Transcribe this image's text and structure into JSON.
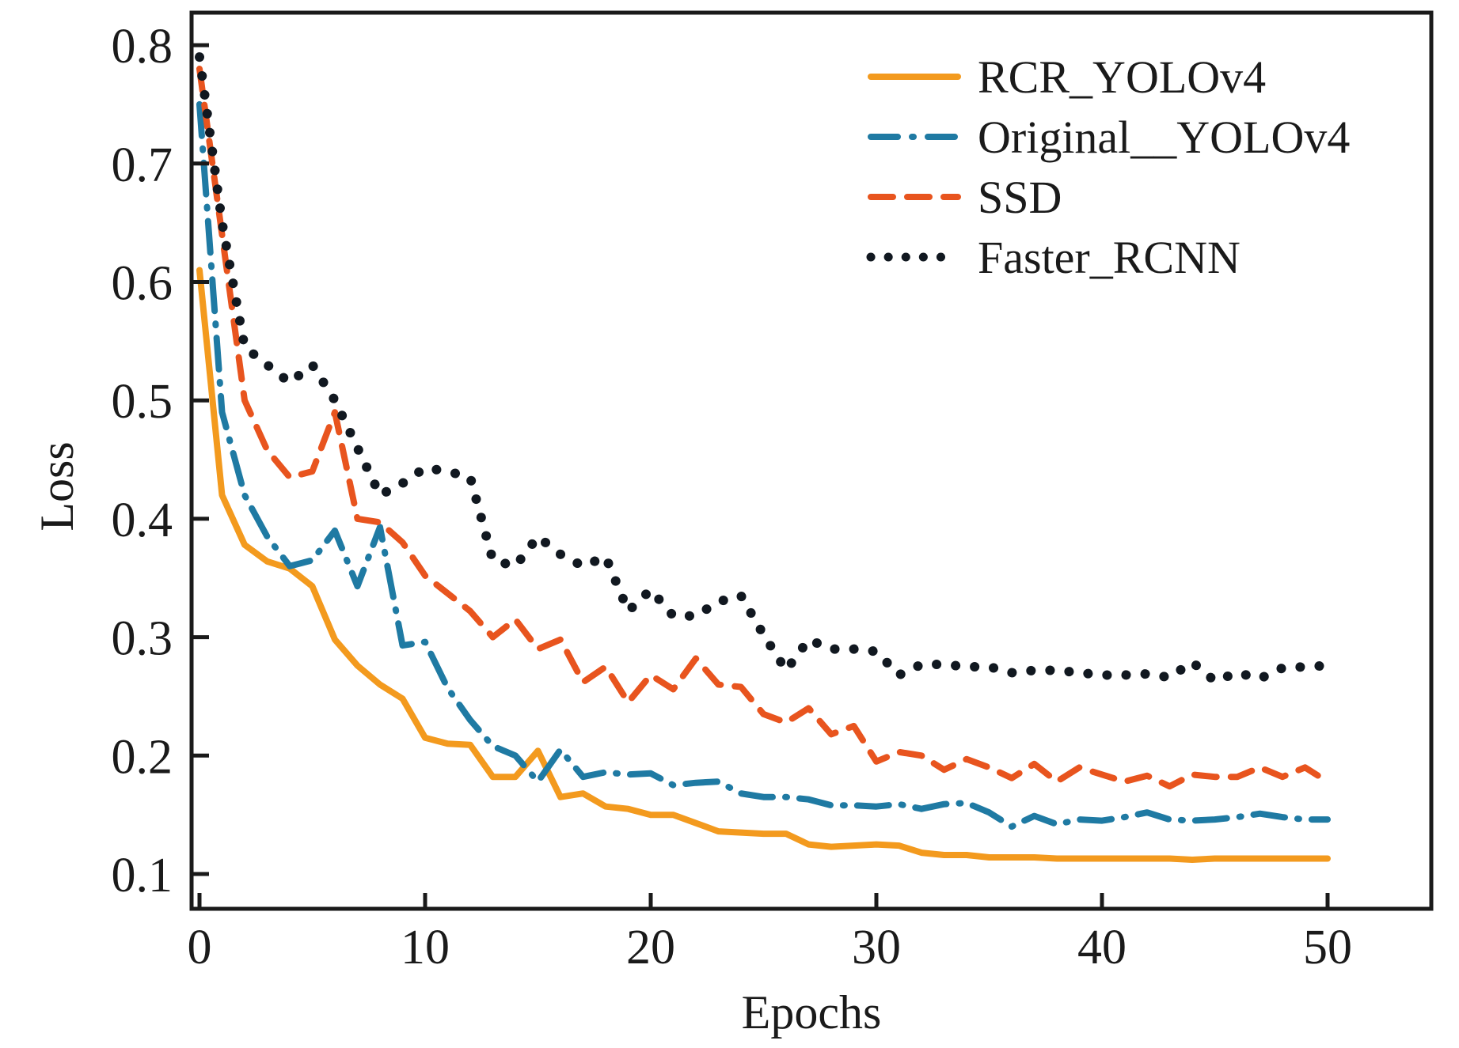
{
  "chart_data": {
    "type": "line",
    "title": "",
    "xlabel": "Epochs",
    "ylabel": "Loss",
    "xlim": [
      0,
      55
    ],
    "ylim": [
      0.07,
      0.83
    ],
    "xticks": [
      0,
      10,
      20,
      30,
      40,
      50
    ],
    "xtick_labels": [
      "0",
      "10",
      "20",
      "30",
      "40",
      "50"
    ],
    "yticks": [
      0.1,
      0.2,
      0.3,
      0.4,
      0.5,
      0.6,
      0.7,
      0.8
    ],
    "ytick_labels": [
      "0.1",
      "0.2",
      "0.3",
      "0.4",
      "0.5",
      "0.6",
      "0.7",
      "0.8"
    ],
    "grid": false,
    "legend_position": "top-right",
    "x": [
      0,
      1,
      2,
      3,
      4,
      5,
      6,
      7,
      8,
      9,
      10,
      11,
      12,
      13,
      14,
      15,
      16,
      17,
      18,
      19,
      20,
      21,
      22,
      23,
      24,
      25,
      26,
      27,
      28,
      29,
      30,
      31,
      32,
      33,
      34,
      35,
      36,
      37,
      38,
      39,
      40,
      41,
      42,
      43,
      44,
      45,
      46,
      47,
      48,
      49,
      50
    ],
    "series": [
      {
        "name": "RCR_YOLOv4",
        "color": "#f39a1e",
        "style": "solid",
        "values": [
          0.61,
          0.42,
          0.378,
          0.364,
          0.358,
          0.343,
          0.298,
          0.276,
          0.26,
          0.248,
          0.215,
          0.21,
          0.209,
          0.182,
          0.182,
          0.204,
          0.165,
          0.168,
          0.157,
          0.155,
          0.15,
          0.15,
          0.143,
          0.136,
          0.135,
          0.134,
          0.134,
          0.125,
          0.123,
          0.124,
          0.125,
          0.124,
          0.118,
          0.116,
          0.116,
          0.114,
          0.114,
          0.114,
          0.113,
          0.113,
          0.113,
          0.113,
          0.113,
          0.113,
          0.112,
          0.113,
          0.113,
          0.113,
          0.113,
          0.113,
          0.113
        ]
      },
      {
        "name": "Original__YOLOv4",
        "color": "#1f7aa3",
        "style": "dashdot",
        "values": [
          0.75,
          0.49,
          0.42,
          0.385,
          0.36,
          0.365,
          0.39,
          0.343,
          0.393,
          0.293,
          0.296,
          0.257,
          0.23,
          0.208,
          0.2,
          0.178,
          0.205,
          0.182,
          0.186,
          0.184,
          0.185,
          0.175,
          0.177,
          0.178,
          0.168,
          0.165,
          0.165,
          0.163,
          0.158,
          0.158,
          0.157,
          0.159,
          0.155,
          0.159,
          0.16,
          0.152,
          0.14,
          0.149,
          0.142,
          0.146,
          0.145,
          0.148,
          0.152,
          0.146,
          0.145,
          0.146,
          0.148,
          0.151,
          0.148,
          0.146,
          0.146
        ]
      },
      {
        "name": "SSD",
        "color": "#e8541e",
        "style": "dashed",
        "values": [
          0.78,
          0.64,
          0.5,
          0.458,
          0.435,
          0.44,
          0.49,
          0.4,
          0.397,
          0.38,
          0.352,
          0.337,
          0.322,
          0.3,
          0.315,
          0.29,
          0.298,
          0.262,
          0.275,
          0.245,
          0.268,
          0.256,
          0.282,
          0.26,
          0.258,
          0.235,
          0.228,
          0.24,
          0.218,
          0.225,
          0.195,
          0.203,
          0.2,
          0.188,
          0.197,
          0.19,
          0.181,
          0.193,
          0.178,
          0.19,
          0.184,
          0.178,
          0.183,
          0.174,
          0.184,
          0.182,
          0.182,
          0.19,
          0.182,
          0.19,
          0.178
        ]
      },
      {
        "name": "Faster_RCNN",
        "color": "#111820",
        "style": "dotted",
        "values": [
          0.79,
          0.65,
          0.545,
          0.53,
          0.515,
          0.53,
          0.5,
          0.46,
          0.42,
          0.43,
          0.443,
          0.44,
          0.435,
          0.365,
          0.36,
          0.385,
          0.37,
          0.36,
          0.368,
          0.322,
          0.34,
          0.318,
          0.318,
          0.33,
          0.335,
          0.302,
          0.272,
          0.298,
          0.29,
          0.29,
          0.288,
          0.268,
          0.277,
          0.277,
          0.275,
          0.275,
          0.27,
          0.272,
          0.272,
          0.27,
          0.268,
          0.268,
          0.269,
          0.266,
          0.279,
          0.263,
          0.27,
          0.265,
          0.274,
          0.275,
          0.276
        ]
      }
    ]
  }
}
